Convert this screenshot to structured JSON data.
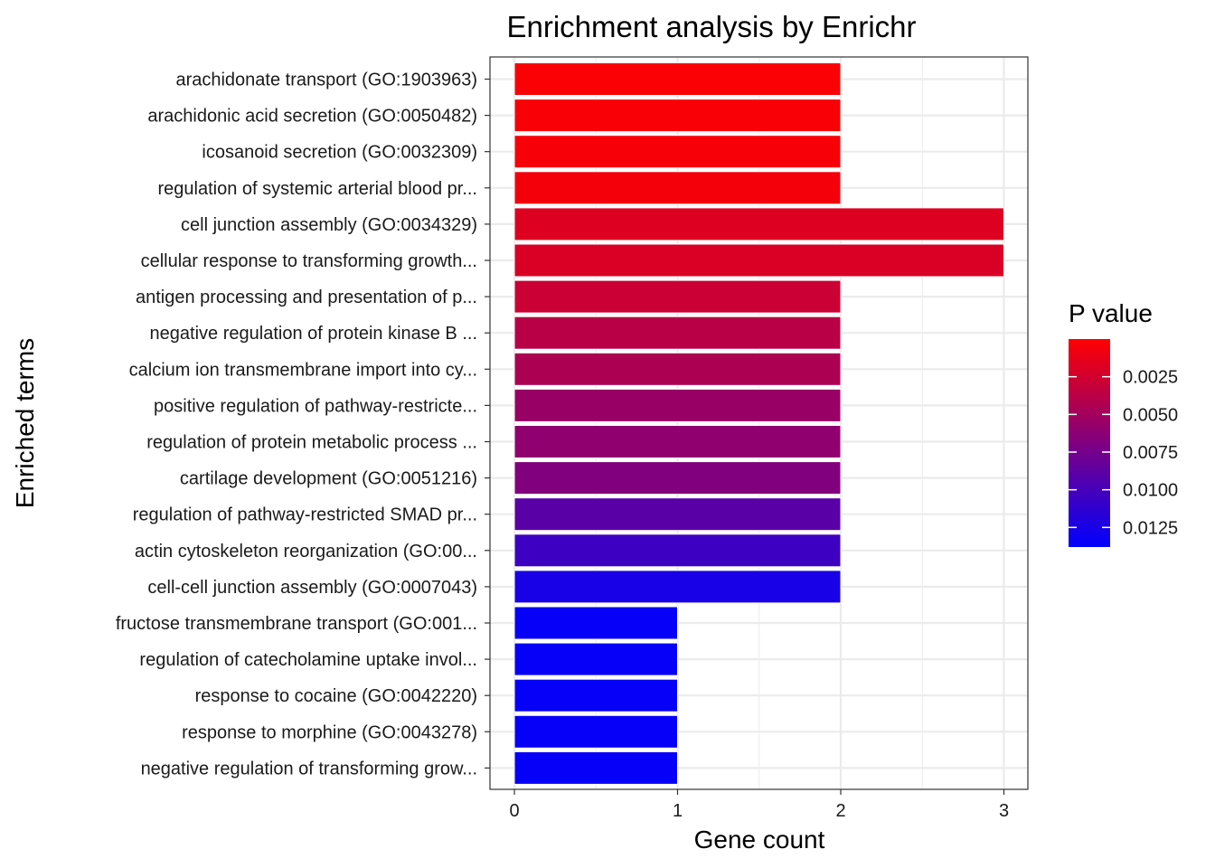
{
  "chart_data": {
    "type": "bar",
    "orientation": "horizontal",
    "title": "Enrichment analysis by Enrichr",
    "xlabel": "Gene count",
    "ylabel": "Enriched terms",
    "xlim": [
      0,
      3
    ],
    "x_ticks": [
      "0",
      "1",
      "2",
      "3"
    ],
    "grid": true,
    "categories": [
      "arachidonate transport (GO:1903963)",
      "arachidonic acid secretion (GO:0050482)",
      "icosanoid secretion (GO:0032309)",
      "regulation of systemic arterial blood pr...",
      "cell junction assembly (GO:0034329)",
      "cellular response to transforming growth...",
      "antigen processing and presentation of p...",
      "negative regulation of protein kinase B ...",
      "calcium ion transmembrane import into cy...",
      "positive regulation of pathway-restricte...",
      "regulation of protein metabolic process ...",
      "cartilage development (GO:0051216)",
      "regulation of pathway-restricted SMAD pr...",
      "actin cytoskeleton reorganization (GO:00...",
      "cell-cell junction assembly (GO:0007043)",
      "fructose transmembrane transport (GO:001...",
      "regulation of catecholamine uptake invol...",
      "response to cocaine (GO:0042220)",
      "response to morphine (GO:0043278)",
      "negative regulation of transforming grow..."
    ],
    "values": [
      2,
      2,
      2,
      2,
      3,
      3,
      2,
      2,
      2,
      2,
      2,
      2,
      2,
      2,
      2,
      1,
      1,
      1,
      1,
      1
    ],
    "p_values": [
      0.0002,
      0.0003,
      0.0004,
      0.0006,
      0.0018,
      0.002,
      0.0028,
      0.0038,
      0.0045,
      0.0055,
      0.006,
      0.0068,
      0.009,
      0.0105,
      0.0125,
      0.0135,
      0.0135,
      0.0135,
      0.0135,
      0.0135
    ],
    "legend": {
      "title": "P value",
      "position": "right",
      "ticks": [
        "0.0025",
        "0.0050",
        "0.0075",
        "0.0100",
        "0.0125"
      ],
      "tick_values": [
        0.0025,
        0.005,
        0.0075,
        0.01,
        0.0125
      ],
      "range": [
        0.0,
        0.0138
      ],
      "low_color": "#ff0000",
      "high_color": "#0000ff"
    },
    "bar_edge_color": "#ffffff",
    "panel_border_color": "#333333",
    "grid_color": "#ebebeb"
  }
}
